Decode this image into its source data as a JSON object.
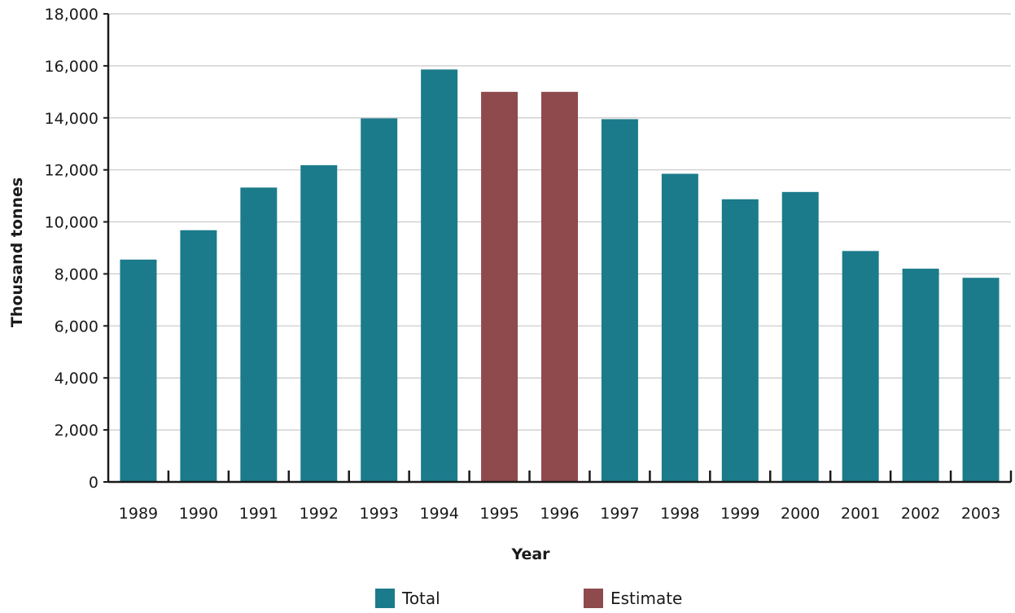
{
  "chart_data": {
    "type": "bar",
    "categories": [
      "1989",
      "1990",
      "1991",
      "1992",
      "1993",
      "1994",
      "1995",
      "1996",
      "1997",
      "1998",
      "1999",
      "2000",
      "2001",
      "2002",
      "2003"
    ],
    "series": [
      {
        "name": "Total",
        "color": "#1b7b8b",
        "values": [
          8550,
          9680,
          11320,
          12180,
          13980,
          15860,
          null,
          null,
          13950,
          11850,
          10870,
          11150,
          8880,
          8200,
          7850
        ]
      },
      {
        "name": "Estimate",
        "color": "#8e4a4c",
        "values": [
          null,
          null,
          null,
          null,
          null,
          null,
          15000,
          15000,
          null,
          null,
          null,
          null,
          null,
          null,
          null
        ]
      }
    ],
    "xlabel": "Year",
    "ylabel": "Thousand tonnes",
    "ylim": [
      0,
      18000
    ],
    "yticks": [
      0,
      2000,
      4000,
      6000,
      8000,
      10000,
      12000,
      14000,
      16000,
      18000
    ],
    "ytick_labels": [
      "0",
      "2,000",
      "4,000",
      "6,000",
      "8,000",
      "10,000",
      "12,000",
      "14,000",
      "16,000",
      "18,000"
    ],
    "grid": true,
    "legend_position": "bottom-center"
  }
}
